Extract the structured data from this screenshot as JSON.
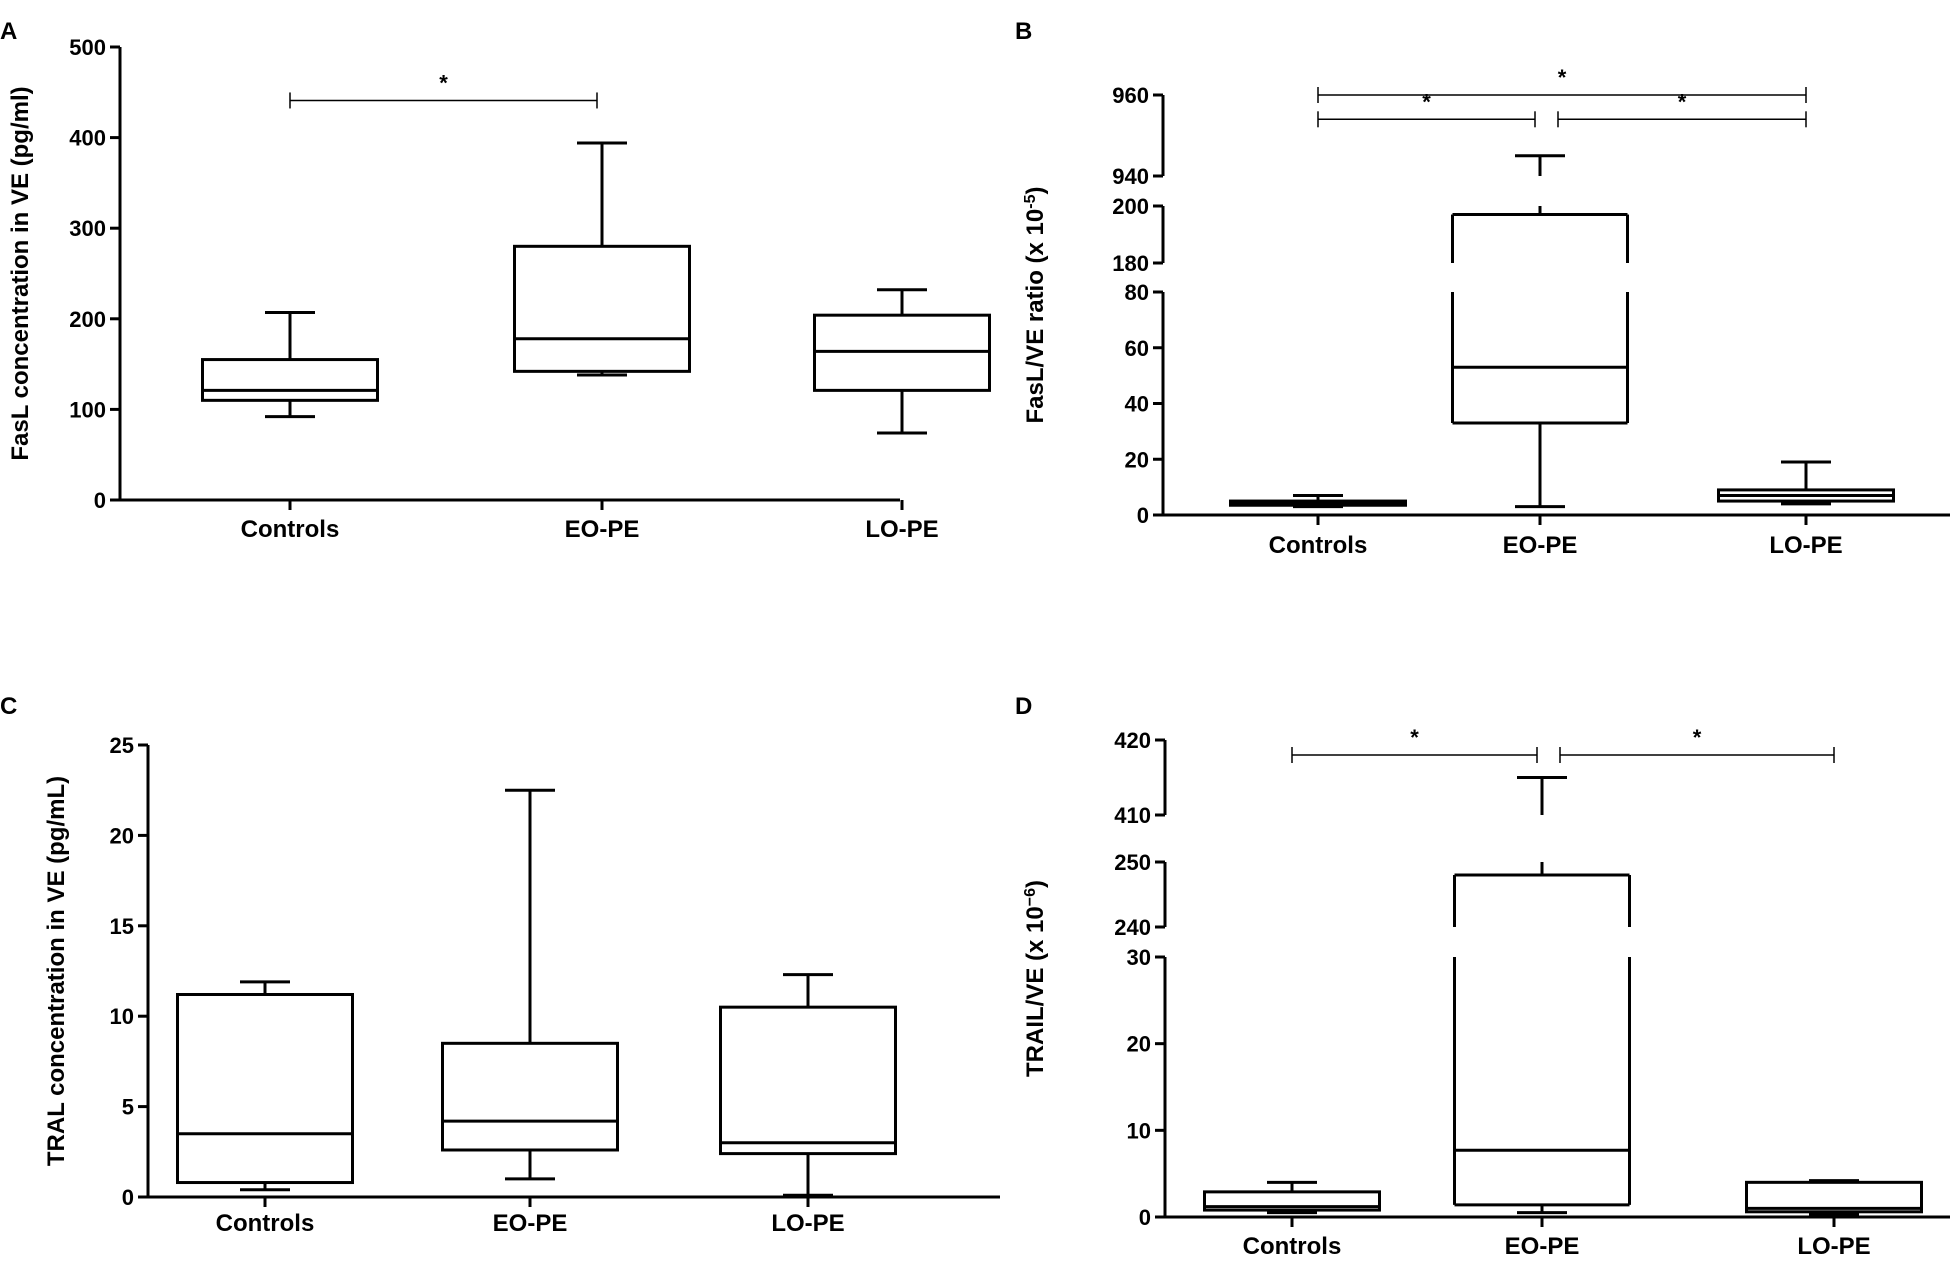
{
  "chart_data": [
    {
      "id": "A",
      "panel_label": "A",
      "type": "boxplot",
      "categories": [
        "Controls",
        "EO-PE",
        "LO-PE"
      ],
      "ylabel": "FasL concentration in VE  (pg/ml)",
      "ylim": [
        0,
        500
      ],
      "yticks": [
        0,
        100,
        200,
        300,
        400,
        500
      ],
      "boxes": [
        {
          "min": 92,
          "q1": 110,
          "median": 121,
          "q3": 155,
          "max": 207
        },
        {
          "min": 138,
          "q1": 142,
          "median": 178,
          "q3": 280,
          "max": 394
        },
        {
          "min": 74,
          "q1": 121,
          "median": 164,
          "q3": 204,
          "max": 232
        }
      ],
      "significance": [
        {
          "from": 0,
          "to": 1,
          "y": 441,
          "label": "*"
        }
      ]
    },
    {
      "id": "B",
      "panel_label": "B",
      "type": "boxplot",
      "categories": [
        "Controls",
        "EO-PE",
        "LO-PE"
      ],
      "ylabel": "FasL/VE ratio (x 10",
      "ylabel_sup": "-5",
      "ylabel_end": ")",
      "axis_segments": [
        {
          "range": [
            0,
            80
          ],
          "ticks": [
            0,
            20,
            40,
            60,
            80
          ]
        },
        {
          "range": [
            180,
            200
          ],
          "ticks": [
            180,
            200
          ]
        },
        {
          "range": [
            940,
            960
          ],
          "ticks": [
            940,
            960
          ]
        }
      ],
      "boxes": [
        {
          "min": 3,
          "q1": 3.5,
          "median": 4,
          "q3": 5,
          "max": 7
        },
        {
          "min": 3,
          "q1": 33,
          "median": 53,
          "q3": 197,
          "max": 945
        },
        {
          "min": 4,
          "q1": 5,
          "median": 7,
          "q3": 9,
          "max": 19
        }
      ],
      "significance": [
        {
          "from": 0,
          "to": 2,
          "y": 970,
          "label": "*"
        },
        {
          "from": 0,
          "to": 1,
          "y": 954,
          "label": "*"
        },
        {
          "from": 1,
          "to": 2,
          "y": 954,
          "label": "*"
        }
      ]
    },
    {
      "id": "C",
      "panel_label": "C",
      "type": "boxplot",
      "categories": [
        "Controls",
        "EO-PE",
        "LO-PE"
      ],
      "ylabel": "TRAL concentration in VE (pg/mL)",
      "ylim": [
        0,
        25
      ],
      "yticks": [
        0,
        5,
        10,
        15,
        20,
        25
      ],
      "boxes": [
        {
          "min": 0.4,
          "q1": 0.8,
          "median": 3.5,
          "q3": 11.2,
          "max": 11.9
        },
        {
          "min": 1.0,
          "q1": 2.6,
          "median": 4.2,
          "q3": 8.5,
          "max": 22.5
        },
        {
          "min": 0.1,
          "q1": 2.4,
          "median": 3.0,
          "q3": 10.5,
          "max": 12.3
        }
      ],
      "significance": []
    },
    {
      "id": "D",
      "panel_label": "D",
      "type": "boxplot",
      "categories": [
        "Controls",
        "EO-PE",
        "LO-PE"
      ],
      "ylabel": "TRAIL/VE (x 10",
      "ylabel_sup": "−6",
      "ylabel_end": ")",
      "axis_segments": [
        {
          "range": [
            0,
            30
          ],
          "ticks": [
            0,
            10,
            20,
            30
          ]
        },
        {
          "range": [
            240,
            250
          ],
          "ticks": [
            240,
            250
          ]
        },
        {
          "range": [
            410,
            420
          ],
          "ticks": [
            410,
            420
          ]
        }
      ],
      "boxes": [
        {
          "min": 0.5,
          "q1": 0.8,
          "median": 1.2,
          "q3": 2.9,
          "max": 4.0
        },
        {
          "min": 0.5,
          "q1": 1.4,
          "median": 7.7,
          "q3": 248,
          "max": 415
        },
        {
          "min": 0.3,
          "q1": 0.6,
          "median": 1.0,
          "q3": 4.0,
          "max": 4.2
        }
      ],
      "significance": [
        {
          "from": 0,
          "to": 1,
          "y": 418,
          "label": "*"
        },
        {
          "from": 1,
          "to": 2,
          "y": 418,
          "label": "*"
        }
      ]
    }
  ]
}
